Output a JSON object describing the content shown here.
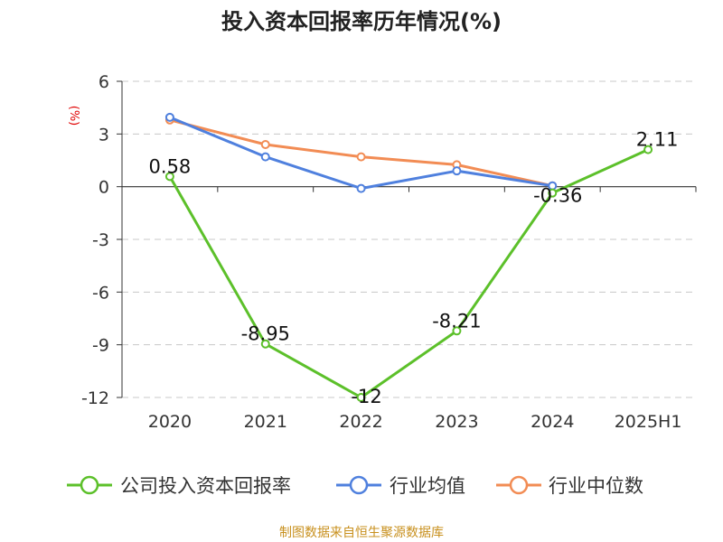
{
  "colors": {
    "company": "#5cc02a",
    "industry_avg": "#4f80de",
    "industry_median": "#f28c54",
    "source": "#c8901e",
    "ylabel": "#e00000"
  },
  "source_text": "制图数据来自恒生聚源数据库",
  "chart_data": {
    "type": "line",
    "title": "投入资本回报率历年情况(%)",
    "xlabel": "",
    "ylabel": "(%)",
    "categories": [
      "2020",
      "2021",
      "2022",
      "2023",
      "2024",
      "2025H1"
    ],
    "ylim": [
      -12,
      6
    ],
    "yticks": [
      6,
      3,
      0,
      -3,
      -6,
      -9,
      -12
    ],
    "grid": true,
    "legend_position": "bottom",
    "series": [
      {
        "name": "公司投入资本回报率",
        "color_key": "company",
        "values": [
          0.58,
          -8.95,
          -12,
          -8.21,
          -0.36,
          2.11
        ],
        "data_labels": [
          "0.58",
          "-8.95",
          "-12",
          "-8.21",
          "-0.36",
          "2.11"
        ]
      },
      {
        "name": "行业均值",
        "color_key": "industry_avg",
        "values": [
          3.95,
          1.7,
          -0.1,
          0.9,
          0.05,
          null
        ]
      },
      {
        "name": "行业中位数",
        "color_key": "industry_median",
        "values": [
          3.8,
          2.4,
          1.7,
          1.25,
          0.05,
          null
        ]
      }
    ]
  }
}
